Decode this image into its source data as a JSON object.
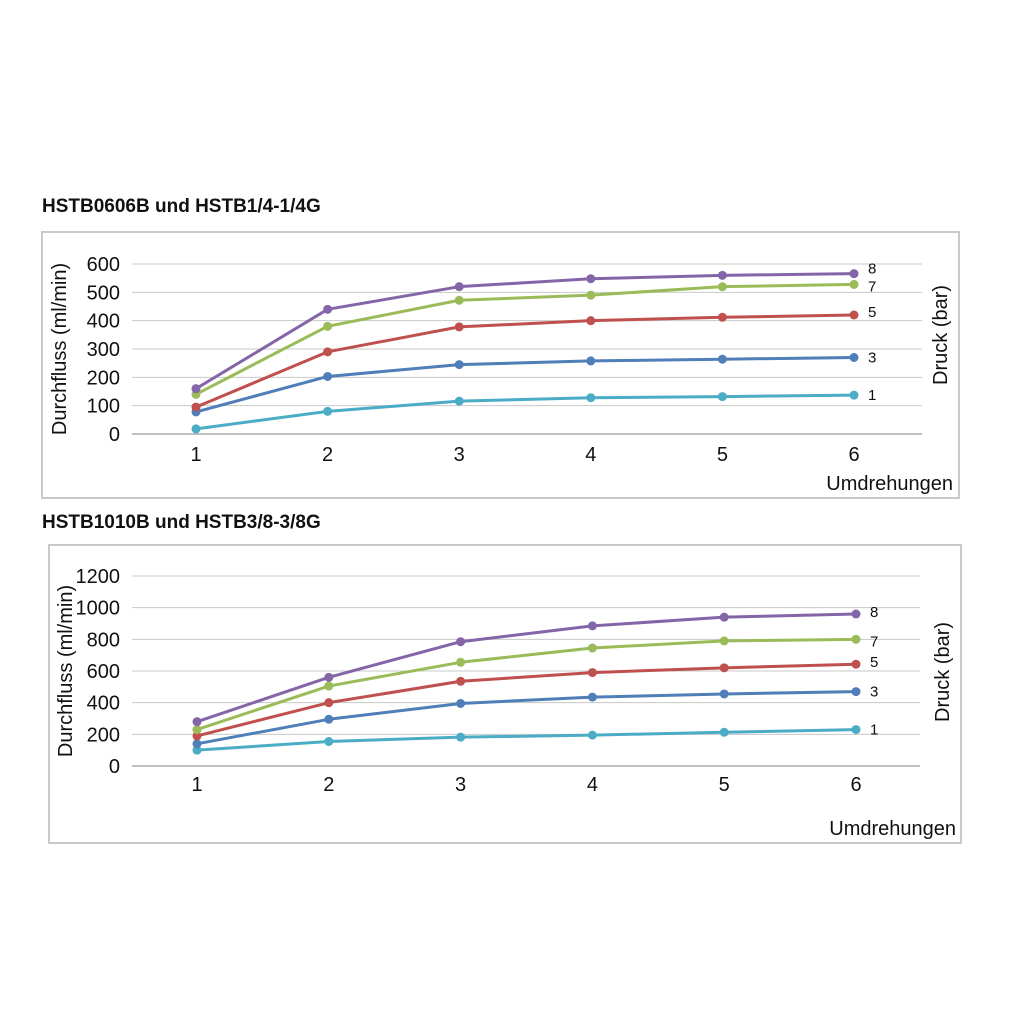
{
  "chart_data": [
    {
      "type": "line",
      "title": "HSTB0606B und HSTB1/4-1/4G",
      "xlabel": "Umdrehungen",
      "ylabel": "Durchfluss (ml/min)",
      "y2label": "Druck (bar)",
      "x": [
        1,
        2,
        3,
        4,
        5,
        6
      ],
      "ylim": [
        0,
        600
      ],
      "yticks": [
        0,
        100,
        200,
        300,
        400,
        500,
        600
      ],
      "grid": true,
      "series": [
        {
          "name": "8",
          "color": "#8466a8",
          "values": [
            160,
            440,
            520,
            548,
            560,
            566
          ]
        },
        {
          "name": "7",
          "color": "#9bbb59",
          "values": [
            140,
            380,
            472,
            490,
            520,
            528
          ]
        },
        {
          "name": "5",
          "color": "#c0504d",
          "values": [
            95,
            290,
            378,
            400,
            412,
            420
          ]
        },
        {
          "name": "3",
          "color": "#4f7eb8",
          "values": [
            78,
            203,
            245,
            258,
            264,
            270
          ]
        },
        {
          "name": "1",
          "color": "#4bacc6",
          "values": [
            18,
            80,
            116,
            128,
            132,
            137
          ]
        }
      ]
    },
    {
      "type": "line",
      "title": "HSTB1010B und HSTB3/8-3/8G",
      "xlabel": "Umdrehungen",
      "ylabel": "Durchfluss (ml/min)",
      "y2label": "Druck (bar)",
      "x": [
        1,
        2,
        3,
        4,
        5,
        6
      ],
      "ylim": [
        0,
        1200
      ],
      "yticks": [
        0,
        200,
        400,
        600,
        800,
        1000,
        1200
      ],
      "grid": true,
      "series": [
        {
          "name": "8",
          "color": "#8466a8",
          "values": [
            280,
            560,
            785,
            885,
            940,
            960
          ]
        },
        {
          "name": "7",
          "color": "#9bbb59",
          "values": [
            230,
            505,
            655,
            745,
            790,
            800
          ]
        },
        {
          "name": "5",
          "color": "#c0504d",
          "values": [
            190,
            400,
            535,
            590,
            620,
            643
          ]
        },
        {
          "name": "3",
          "color": "#4f7eb8",
          "values": [
            140,
            295,
            395,
            435,
            455,
            470
          ]
        },
        {
          "name": "1",
          "color": "#4bacc6",
          "values": [
            100,
            155,
            182,
            195,
            213,
            230
          ]
        }
      ]
    }
  ]
}
